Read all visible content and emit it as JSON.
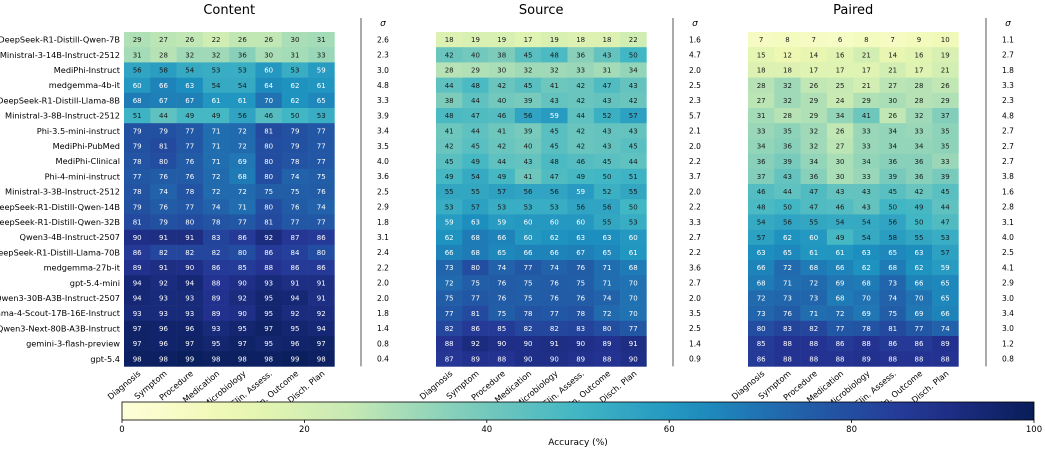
{
  "chart_data": {
    "type": "heatmap",
    "rows": [
      "DeepSeek-R1-Distill-Qwen-7B",
      "Ministral-3-14B-Instruct-2512",
      "MediPhi-Instruct",
      "medgemma-4b-it",
      "DeepSeek-R1-Distill-Llama-8B",
      "Ministral-3-8B-Instruct-2512",
      "Phi-3.5-mini-instruct",
      "MediPhi-PubMed",
      "MediPhi-Clinical",
      "Phi-4-mini-instruct",
      "Ministral-3-3B-Instruct-2512",
      "DeepSeek-R1-Distill-Qwen-14B",
      "DeepSeek-R1-Distill-Qwen-32B",
      "Qwen3-4B-Instruct-2507",
      "DeepSeek-R1-Distill-Llama-70B",
      "medgemma-27b-it",
      "gpt-5.4-mini",
      "Qwen3-30B-A3B-Instruct-2507",
      "Llama-4-Scout-17B-16E-Instruct",
      "Qwen3-Next-80B-A3B-Instruct",
      "gemini-3-flash-preview",
      "gpt-5.4"
    ],
    "columns": [
      "Diagnosis",
      "Symptom",
      "Procedure",
      "Medication",
      "Microbiology",
      "Clin. Assess.",
      "Clin. Outcome",
      "Disch. Plan"
    ],
    "sigma_label": "σ",
    "colorbar": {
      "label": "Accuracy (%)",
      "range": [
        0,
        100
      ],
      "ticks": [
        0,
        20,
        40,
        60,
        80,
        100
      ],
      "colormap": "YlGnBu"
    },
    "panels": [
      {
        "title": "Content",
        "values": [
          [
            29,
            27,
            26,
            22,
            26,
            26,
            30,
            31
          ],
          [
            31,
            28,
            32,
            32,
            36,
            30,
            31,
            33
          ],
          [
            56,
            58,
            54,
            53,
            53,
            60,
            53,
            59
          ],
          [
            60,
            66,
            63,
            54,
            54,
            64,
            62,
            61
          ],
          [
            68,
            67,
            67,
            61,
            61,
            70,
            62,
            65
          ],
          [
            51,
            44,
            49,
            49,
            56,
            46,
            50,
            53
          ],
          [
            79,
            79,
            77,
            71,
            72,
            81,
            79,
            77
          ],
          [
            79,
            81,
            77,
            71,
            72,
            80,
            79,
            77
          ],
          [
            78,
            80,
            76,
            71,
            69,
            80,
            78,
            77
          ],
          [
            77,
            76,
            76,
            72,
            68,
            80,
            74,
            75
          ],
          [
            78,
            74,
            78,
            72,
            72,
            75,
            75,
            76
          ],
          [
            79,
            76,
            77,
            74,
            71,
            80,
            76,
            74
          ],
          [
            81,
            79,
            80,
            78,
            77,
            81,
            77,
            77
          ],
          [
            90,
            91,
            91,
            83,
            86,
            92,
            87,
            86
          ],
          [
            86,
            82,
            82,
            82,
            80,
            86,
            84,
            80
          ],
          [
            89,
            91,
            90,
            86,
            85,
            88,
            86,
            86
          ],
          [
            94,
            92,
            94,
            88,
            90,
            93,
            91,
            91
          ],
          [
            94,
            93,
            93,
            89,
            92,
            95,
            94,
            91
          ],
          [
            93,
            93,
            93,
            89,
            90,
            95,
            92,
            92
          ],
          [
            97,
            96,
            96,
            93,
            95,
            97,
            95,
            94
          ],
          [
            97,
            96,
            97,
            95,
            97,
            95,
            96,
            97
          ],
          [
            98,
            98,
            99,
            98,
            98,
            98,
            99,
            98
          ]
        ],
        "sigma": [
          "2.6",
          "2.3",
          "3.0",
          "4.8",
          "3.3",
          "3.9",
          "3.4",
          "3.5",
          "4.0",
          "3.6",
          "2.5",
          "2.9",
          "1.8",
          "3.1",
          "2.4",
          "2.2",
          "2.0",
          "2.0",
          "1.8",
          "1.4",
          "0.8",
          "0.4"
        ]
      },
      {
        "title": "Source",
        "values": [
          [
            18,
            19,
            19,
            17,
            19,
            18,
            18,
            22
          ],
          [
            42,
            40,
            38,
            45,
            48,
            36,
            43,
            50
          ],
          [
            28,
            29,
            30,
            32,
            32,
            33,
            31,
            34
          ],
          [
            44,
            48,
            42,
            45,
            41,
            42,
            47,
            43
          ],
          [
            38,
            44,
            40,
            39,
            43,
            42,
            43,
            42
          ],
          [
            48,
            47,
            46,
            56,
            59,
            44,
            52,
            57
          ],
          [
            41,
            44,
            41,
            39,
            45,
            42,
            43,
            43
          ],
          [
            42,
            45,
            42,
            40,
            45,
            42,
            43,
            45
          ],
          [
            45,
            49,
            44,
            43,
            48,
            46,
            45,
            44
          ],
          [
            49,
            54,
            49,
            41,
            47,
            49,
            50,
            51
          ],
          [
            55,
            55,
            57,
            56,
            56,
            59,
            52,
            55
          ],
          [
            53,
            57,
            53,
            53,
            53,
            56,
            56,
            50
          ],
          [
            59,
            63,
            59,
            60,
            60,
            60,
            55,
            53
          ],
          [
            62,
            68,
            66,
            60,
            62,
            63,
            63,
            60
          ],
          [
            66,
            68,
            65,
            66,
            66,
            67,
            65,
            61
          ],
          [
            73,
            80,
            74,
            77,
            74,
            76,
            71,
            68
          ],
          [
            72,
            75,
            76,
            75,
            76,
            75,
            71,
            70
          ],
          [
            75,
            77,
            76,
            75,
            76,
            76,
            74,
            70
          ],
          [
            77,
            81,
            75,
            78,
            77,
            78,
            72,
            70
          ],
          [
            82,
            86,
            85,
            82,
            82,
            83,
            80,
            77
          ],
          [
            88,
            92,
            90,
            90,
            91,
            90,
            89,
            91
          ],
          [
            87,
            89,
            88,
            90,
            90,
            89,
            88,
            90
          ]
        ],
        "sigma": [
          "1.6",
          "4.7",
          "2.0",
          "2.5",
          "2.3",
          "5.7",
          "2.1",
          "2.0",
          "2.2",
          "3.7",
          "2.0",
          "2.2",
          "3.3",
          "2.7",
          "2.2",
          "3.6",
          "2.7",
          "2.0",
          "3.5",
          "2.5",
          "1.4",
          "0.9"
        ]
      },
      {
        "title": "Paired",
        "values": [
          [
            7,
            8,
            7,
            6,
            8,
            7,
            9,
            10
          ],
          [
            15,
            12,
            14,
            16,
            21,
            14,
            16,
            19
          ],
          [
            18,
            18,
            17,
            17,
            17,
            21,
            17,
            21
          ],
          [
            28,
            32,
            26,
            25,
            21,
            27,
            28,
            26
          ],
          [
            27,
            32,
            29,
            24,
            29,
            30,
            28,
            29
          ],
          [
            31,
            28,
            29,
            34,
            41,
            26,
            32,
            37
          ],
          [
            33,
            35,
            32,
            26,
            33,
            34,
            33,
            35
          ],
          [
            34,
            36,
            32,
            27,
            33,
            34,
            34,
            35
          ],
          [
            36,
            39,
            34,
            30,
            34,
            36,
            36,
            33
          ],
          [
            37,
            43,
            36,
            30,
            33,
            39,
            36,
            39
          ],
          [
            46,
            44,
            47,
            43,
            43,
            45,
            42,
            45
          ],
          [
            48,
            50,
            47,
            46,
            43,
            50,
            49,
            44
          ],
          [
            54,
            56,
            55,
            54,
            54,
            56,
            50,
            47
          ],
          [
            57,
            62,
            60,
            49,
            54,
            58,
            55,
            53
          ],
          [
            63,
            65,
            61,
            61,
            63,
            65,
            63,
            57
          ],
          [
            66,
            72,
            68,
            66,
            62,
            68,
            62,
            59
          ],
          [
            68,
            71,
            72,
            69,
            68,
            73,
            66,
            65
          ],
          [
            72,
            73,
            73,
            68,
            70,
            74,
            70,
            65
          ],
          [
            73,
            76,
            71,
            72,
            69,
            75,
            69,
            66
          ],
          [
            80,
            83,
            82,
            77,
            78,
            81,
            77,
            74
          ],
          [
            85,
            88,
            88,
            86,
            88,
            86,
            86,
            89
          ],
          [
            86,
            88,
            88,
            88,
            89,
            88,
            88,
            88
          ]
        ],
        "sigma": [
          "1.1",
          "2.7",
          "1.8",
          "3.3",
          "2.3",
          "4.8",
          "2.7",
          "2.7",
          "2.7",
          "3.8",
          "1.6",
          "2.8",
          "3.1",
          "4.0",
          "2.5",
          "4.1",
          "2.9",
          "3.0",
          "3.4",
          "3.0",
          "1.2",
          "0.8"
        ]
      }
    ]
  }
}
